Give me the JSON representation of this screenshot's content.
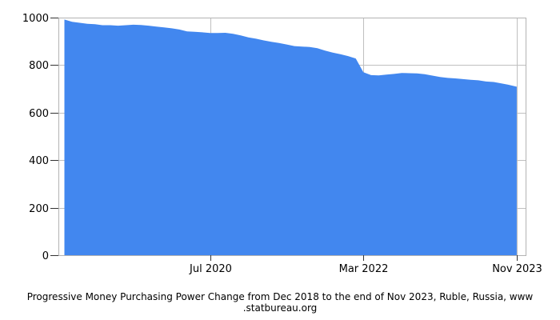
{
  "caption": {
    "line1": "Progressive Money Purchasing Power Change from Dec 2018 to the end of Nov 2023, Ruble, Russia, www",
    "line2": ".statbureau.org"
  },
  "chart_data": {
    "type": "area",
    "title": "Progressive Money Purchasing Power Change from Dec 2018 to the end of Nov 2023, Ruble, Russia, www.statbureau.org",
    "xlabel": "",
    "ylabel": "",
    "ylim": [
      0,
      1000
    ],
    "grid": true,
    "legend": "none",
    "x": [
      "Dec 2018",
      "Jan 2019",
      "Feb 2019",
      "Mar 2019",
      "Apr 2019",
      "May 2019",
      "Jun 2019",
      "Jul 2019",
      "Aug 2019",
      "Sep 2019",
      "Oct 2019",
      "Nov 2019",
      "Dec 2019",
      "Jan 2020",
      "Feb 2020",
      "Mar 2020",
      "Apr 2020",
      "May 2020",
      "Jun 2020",
      "Jul 2020",
      "Aug 2020",
      "Sep 2020",
      "Oct 2020",
      "Nov 2020",
      "Dec 2020",
      "Jan 2021",
      "Feb 2021",
      "Mar 2021",
      "Apr 2021",
      "May 2021",
      "Jun 2021",
      "Jul 2021",
      "Aug 2021",
      "Sep 2021",
      "Oct 2021",
      "Nov 2021",
      "Dec 2021",
      "Jan 2022",
      "Feb 2022",
      "Mar 2022",
      "Apr 2022",
      "May 2022",
      "Jun 2022",
      "Jul 2022",
      "Aug 2022",
      "Sep 2022",
      "Oct 2022",
      "Nov 2022",
      "Dec 2022",
      "Jan 2023",
      "Feb 2023",
      "Mar 2023",
      "Apr 2023",
      "May 2023",
      "Jun 2023",
      "Jul 2023",
      "Aug 2023",
      "Sep 2023",
      "Oct 2023",
      "Nov 2023"
    ],
    "values": [
      992,
      982,
      978,
      974,
      972,
      968,
      968,
      966,
      968,
      970,
      969,
      966,
      962,
      959,
      955,
      950,
      942,
      940,
      938,
      935,
      935,
      936,
      932,
      925,
      917,
      911,
      904,
      898,
      893,
      887,
      880,
      878,
      876,
      871,
      861,
      853,
      846,
      838,
      828,
      770,
      758,
      757,
      760,
      763,
      767,
      766,
      765,
      762,
      756,
      750,
      746,
      744,
      741,
      738,
      736,
      731,
      729,
      723,
      717,
      709
    ],
    "yticks": [
      0,
      200,
      400,
      600,
      800,
      1000
    ],
    "xticks": [
      {
        "label": "Jul 2020",
        "index": 19
      },
      {
        "label": "Mar 2022",
        "index": 39
      },
      {
        "label": "Nov 2023",
        "index": 59
      }
    ],
    "colors": {
      "area": "#4287ef",
      "gridline": "#bfbfbf",
      "border": "#b3b3b3",
      "tick": "#333333",
      "label": "#000000"
    }
  }
}
